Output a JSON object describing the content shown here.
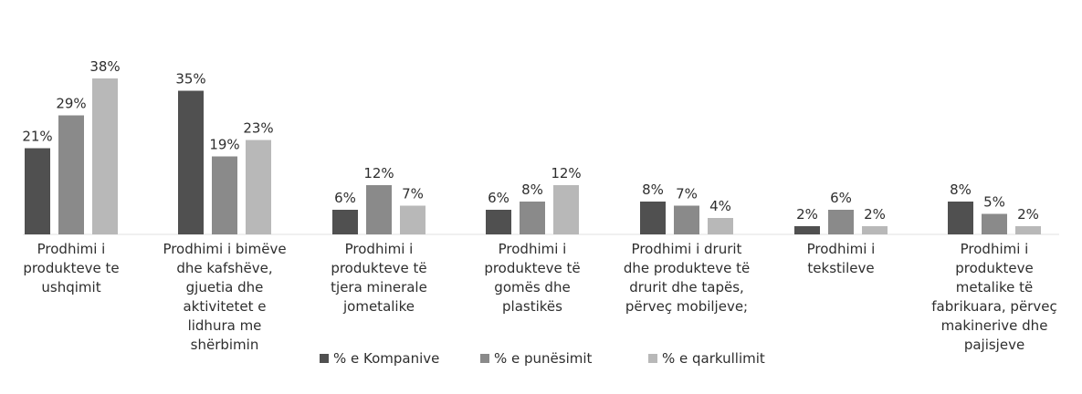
{
  "chart_data": {
    "type": "bar",
    "categories": [
      [
        "Prodhimi i",
        "produkteve te",
        "ushqimit"
      ],
      [
        "Prodhimi i bimëve",
        "dhe kafshëve,",
        "gjuetia dhe",
        "aktivitetet e",
        "lidhura me",
        "shërbimin"
      ],
      [
        "Prodhimi i",
        "produkteve të",
        "tjera minerale",
        "jometalike"
      ],
      [
        "Prodhimi i",
        "produkteve të",
        "gomës dhe",
        "plastikës"
      ],
      [
        "Prodhimi i drurit",
        "dhe produkteve të",
        "drurit dhe tapës,",
        "përveç mobiljeve;"
      ],
      [
        "Prodhimi i",
        "tekstileve"
      ],
      [
        "Prodhimi i",
        "produkteve",
        "metalike të",
        "fabrikuara, përveç",
        "makinerive dhe",
        "pajisjeve"
      ]
    ],
    "series": [
      {
        "name": "% e Kompanive",
        "values": [
          21,
          35,
          6,
          6,
          8,
          2,
          8
        ],
        "labels": [
          "21%",
          "35%",
          "6%",
          "6%",
          "8%",
          "2%",
          "8%"
        ],
        "color": "#505050"
      },
      {
        "name": "% e punësimit",
        "values": [
          29,
          19,
          12,
          8,
          7,
          6,
          5
        ],
        "labels": [
          "29%",
          "19%",
          "12%",
          "8%",
          "7%",
          "6%",
          "5%"
        ],
        "color": "#8a8a8a"
      },
      {
        "name": "% e qarkullimit",
        "values": [
          38,
          23,
          7,
          12,
          4,
          2,
          2
        ],
        "labels": [
          "38%",
          "23%",
          "7%",
          "12%",
          "4%",
          "2%",
          "2%"
        ],
        "color": "#b8b8b8"
      }
    ],
    "ylim": [
      0,
      40
    ],
    "grid": false,
    "legend_position": "bottom-center"
  }
}
